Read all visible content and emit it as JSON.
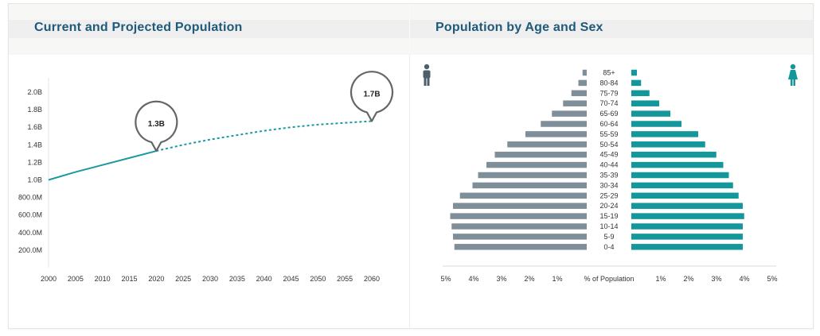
{
  "panels": {
    "left_title": "Current and Projected Population",
    "right_title": "Population by Age and Sex"
  },
  "colors": {
    "accent": "#1a9aa0",
    "male": "#7f8f99",
    "female": "#13979b",
    "title": "#1f5a7a"
  },
  "icons": {
    "male": "male-person-icon",
    "female": "female-person-icon"
  },
  "chart_data": [
    {
      "type": "line",
      "title": "Current and Projected Population",
      "x": [
        2000,
        2005,
        2010,
        2015,
        2020,
        2025,
        2030,
        2035,
        2040,
        2045,
        2050,
        2055,
        2060
      ],
      "series": [
        {
          "style": "solid",
          "x": [
            2000,
            2005,
            2010,
            2015,
            2020
          ],
          "values": [
            1.0,
            1.09,
            1.17,
            1.25,
            1.33
          ]
        },
        {
          "style": "dashed",
          "x": [
            2020,
            2025,
            2030,
            2035,
            2040,
            2045,
            2050,
            2055,
            2060
          ],
          "values": [
            1.33,
            1.4,
            1.46,
            1.51,
            1.56,
            1.6,
            1.63,
            1.65,
            1.67
          ]
        }
      ],
      "xticks": [
        "2000",
        "2005",
        "2010",
        "2015",
        "2020",
        "2025",
        "2030",
        "2035",
        "2040",
        "2045",
        "2050",
        "2055",
        "2060"
      ],
      "yticks": [
        "2.0B",
        "1.8B",
        "1.6B",
        "1.4B",
        "1.2B",
        "1.0B",
        "800.0M",
        "600.0M",
        "400.0M",
        "200.0M"
      ],
      "ytick_values": [
        2.0,
        1.8,
        1.6,
        1.4,
        1.2,
        1.0,
        0.8,
        0.6,
        0.4,
        0.2
      ],
      "ylim": [
        0,
        2.2
      ],
      "xlim": [
        2000,
        2062
      ],
      "annotations": [
        {
          "x": 2020,
          "y": 1.33,
          "label": "1.3B"
        },
        {
          "x": 2060,
          "y": 1.67,
          "label": "1.7B"
        }
      ]
    },
    {
      "type": "bar",
      "orientation": "horizontal-pyramid",
      "title": "Population by Age and Sex",
      "categories": [
        "85+",
        "80-84",
        "75-79",
        "70-74",
        "65-69",
        "60-64",
        "55-59",
        "50-54",
        "45-49",
        "40-44",
        "35-39",
        "30-34",
        "25-29",
        "20-24",
        "15-19",
        "10-14",
        "5-9",
        "0-4"
      ],
      "series": [
        {
          "side": "male",
          "values": [
            0.15,
            0.3,
            0.55,
            0.85,
            1.25,
            1.65,
            2.2,
            2.85,
            3.3,
            3.6,
            3.9,
            4.1,
            4.55,
            4.8,
            4.9,
            4.85,
            4.8,
            4.75
          ]
        },
        {
          "side": "female",
          "values": [
            0.2,
            0.35,
            0.65,
            1.0,
            1.4,
            1.8,
            2.4,
            2.65,
            3.05,
            3.3,
            3.5,
            3.65,
            3.85,
            4.0,
            4.05,
            4.0,
            4.0,
            4.0
          ]
        }
      ],
      "xlabel": "% of Population",
      "xticks_left": [
        "5%",
        "4%",
        "3%",
        "2%",
        "1%"
      ],
      "xticks_right": [
        "1%",
        "2%",
        "3%",
        "4%",
        "5%"
      ],
      "tick_values": [
        1,
        2,
        3,
        4,
        5
      ],
      "xlim": [
        0,
        5
      ]
    }
  ]
}
